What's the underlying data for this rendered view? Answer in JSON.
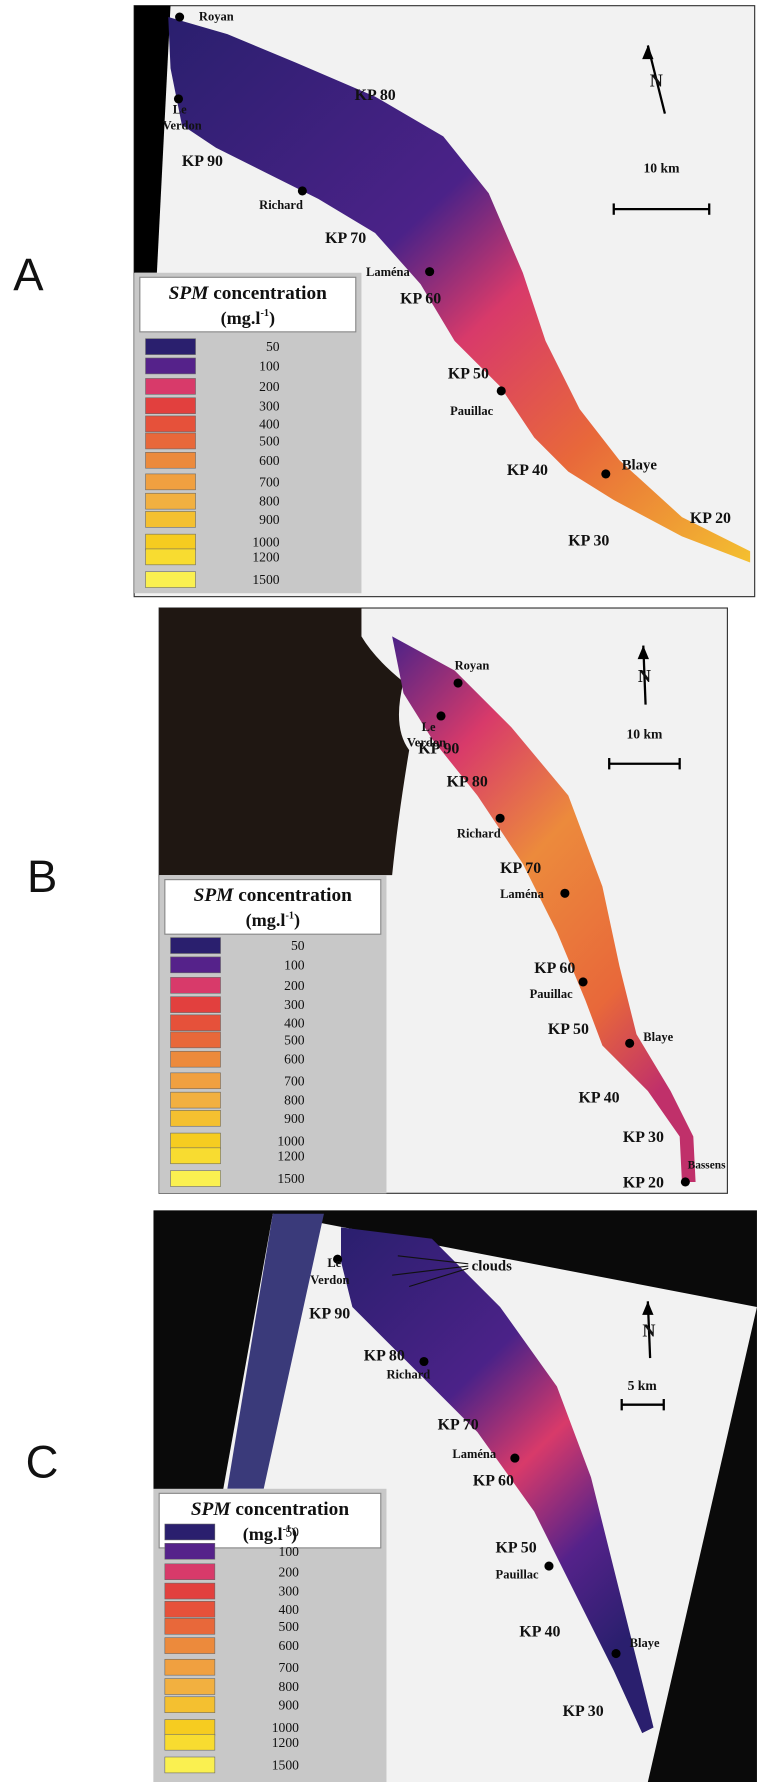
{
  "figure": {
    "panels": [
      {
        "letter": "A",
        "north": "N",
        "scale": "10 km",
        "labels": [
          "Royan",
          "Le",
          "Verdon",
          "KP 80",
          "KP 90",
          "Richard",
          "KP 70",
          "Laména",
          "KP 60",
          "KP 50",
          "Pauillac",
          "KP 40",
          "Blaye",
          "KP 30",
          "KP 20"
        ]
      },
      {
        "letter": "B",
        "north": "N",
        "scale": "10 km",
        "labels": [
          "Royan",
          "Le",
          "Verdon",
          "KP 90",
          "KP 80",
          "Richard",
          "KP 70",
          "Laména",
          "KP 60",
          "Pauillac",
          "KP 50",
          "Blaye",
          "KP 40",
          "KP 30",
          "Bassens",
          "KP 20"
        ]
      },
      {
        "letter": "C",
        "north": "N",
        "scale": "5 km",
        "labels": [
          "Le",
          "Verdon",
          "clouds",
          "KP 90",
          "KP 80",
          "Richard",
          "KP 70",
          "Laména",
          "KP 60",
          "KP 50",
          "Pauillac",
          "KP 40",
          "Blaye",
          "KP 30"
        ]
      }
    ],
    "legend": {
      "title_italic": "SPM",
      "title_rest": " concentration",
      "unit": "(mg.l",
      "unit_sup": "-1",
      "unit_end": ")",
      "entries": [
        {
          "label": "50",
          "color": "#2a1f6e"
        },
        {
          "label": "100",
          "color": "#55228a"
        },
        {
          "label": "200",
          "color": "#d83a6a"
        },
        {
          "label": "300",
          "color": "#e2403e"
        },
        {
          "label": "400",
          "color": "#e6513a"
        },
        {
          "label": "500",
          "color": "#e8683a"
        },
        {
          "label": "600",
          "color": "#ec8a3c"
        },
        {
          "label": "700",
          "color": "#f0a040"
        },
        {
          "label": "800",
          "color": "#f2b040"
        },
        {
          "label": "900",
          "color": "#f4c030"
        },
        {
          "label": "1000",
          "color": "#f6cc20"
        },
        {
          "label": "1200",
          "color": "#f8dc30"
        },
        {
          "label": "1500",
          "color": "#faf050"
        }
      ]
    }
  }
}
